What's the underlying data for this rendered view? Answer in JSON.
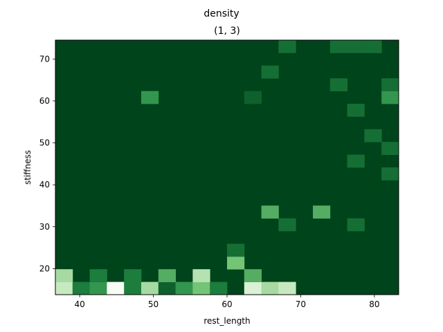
{
  "chart_data": {
    "type": "heatmap",
    "suptitle": "density",
    "title": "(1, 3)",
    "xlabel": "rest_length",
    "ylabel": "stiffness",
    "xlim": [
      36.7,
      83.3
    ],
    "ylim": [
      13.8,
      74.5
    ],
    "xticks": [
      40,
      50,
      60,
      70,
      80
    ],
    "yticks": [
      20,
      30,
      40,
      50,
      60,
      70
    ],
    "x_bin_start": 36.7,
    "x_bin_width": 2.33,
    "y_bin_start": 13.8,
    "y_bin_width": 3.035,
    "n_cols": 20,
    "n_rows": 20,
    "colormap": "Greens",
    "colormap_range": [
      0,
      10
    ],
    "background_value": 0,
    "cells": [
      {
        "col": 0,
        "row": 0,
        "value": 7.5
      },
      {
        "col": 1,
        "row": 0,
        "value": 2
      },
      {
        "col": 2,
        "row": 0,
        "value": 3
      },
      {
        "col": 3,
        "row": 0,
        "value": 10
      },
      {
        "col": 4,
        "row": 0,
        "value": 2
      },
      {
        "col": 5,
        "row": 0,
        "value": 6.5
      },
      {
        "col": 6,
        "row": 0,
        "value": 1
      },
      {
        "col": 7,
        "row": 0,
        "value": 3
      },
      {
        "col": 8,
        "row": 0,
        "value": 5
      },
      {
        "col": 9,
        "row": 0,
        "value": 2
      },
      {
        "col": 11,
        "row": 0,
        "value": 8.5
      },
      {
        "col": 12,
        "row": 0,
        "value": 6.5
      },
      {
        "col": 13,
        "row": 0,
        "value": 7.5
      },
      {
        "col": 0,
        "row": 1,
        "value": 6.5
      },
      {
        "col": 2,
        "row": 1,
        "value": 2
      },
      {
        "col": 4,
        "row": 1,
        "value": 2
      },
      {
        "col": 6,
        "row": 1,
        "value": 4
      },
      {
        "col": 8,
        "row": 1,
        "value": 7
      },
      {
        "col": 11,
        "row": 1,
        "value": 4
      },
      {
        "col": 10,
        "row": 2,
        "value": 5
      },
      {
        "col": 10,
        "row": 3,
        "value": 1.5
      },
      {
        "col": 13,
        "row": 5,
        "value": 1.5
      },
      {
        "col": 17,
        "row": 5,
        "value": 1.5
      },
      {
        "col": 12,
        "row": 6,
        "value": 4
      },
      {
        "col": 15,
        "row": 6,
        "value": 4
      },
      {
        "col": 19,
        "row": 9,
        "value": 1.5
      },
      {
        "col": 17,
        "row": 10,
        "value": 1.5
      },
      {
        "col": 19,
        "row": 11,
        "value": 1.5
      },
      {
        "col": 18,
        "row": 12,
        "value": 1.5
      },
      {
        "col": 17,
        "row": 14,
        "value": 1.5
      },
      {
        "col": 5,
        "row": 15,
        "value": 3
      },
      {
        "col": 11,
        "row": 15,
        "value": 1
      },
      {
        "col": 19,
        "row": 15,
        "value": 3
      },
      {
        "col": 16,
        "row": 16,
        "value": 1.5
      },
      {
        "col": 19,
        "row": 16,
        "value": 1.5
      },
      {
        "col": 12,
        "row": 17,
        "value": 1.5
      },
      {
        "col": 13,
        "row": 19,
        "value": 1.5
      },
      {
        "col": 16,
        "row": 19,
        "value": 1.5
      },
      {
        "col": 17,
        "row": 19,
        "value": 1.5
      },
      {
        "col": 18,
        "row": 19,
        "value": 1.5
      }
    ]
  }
}
